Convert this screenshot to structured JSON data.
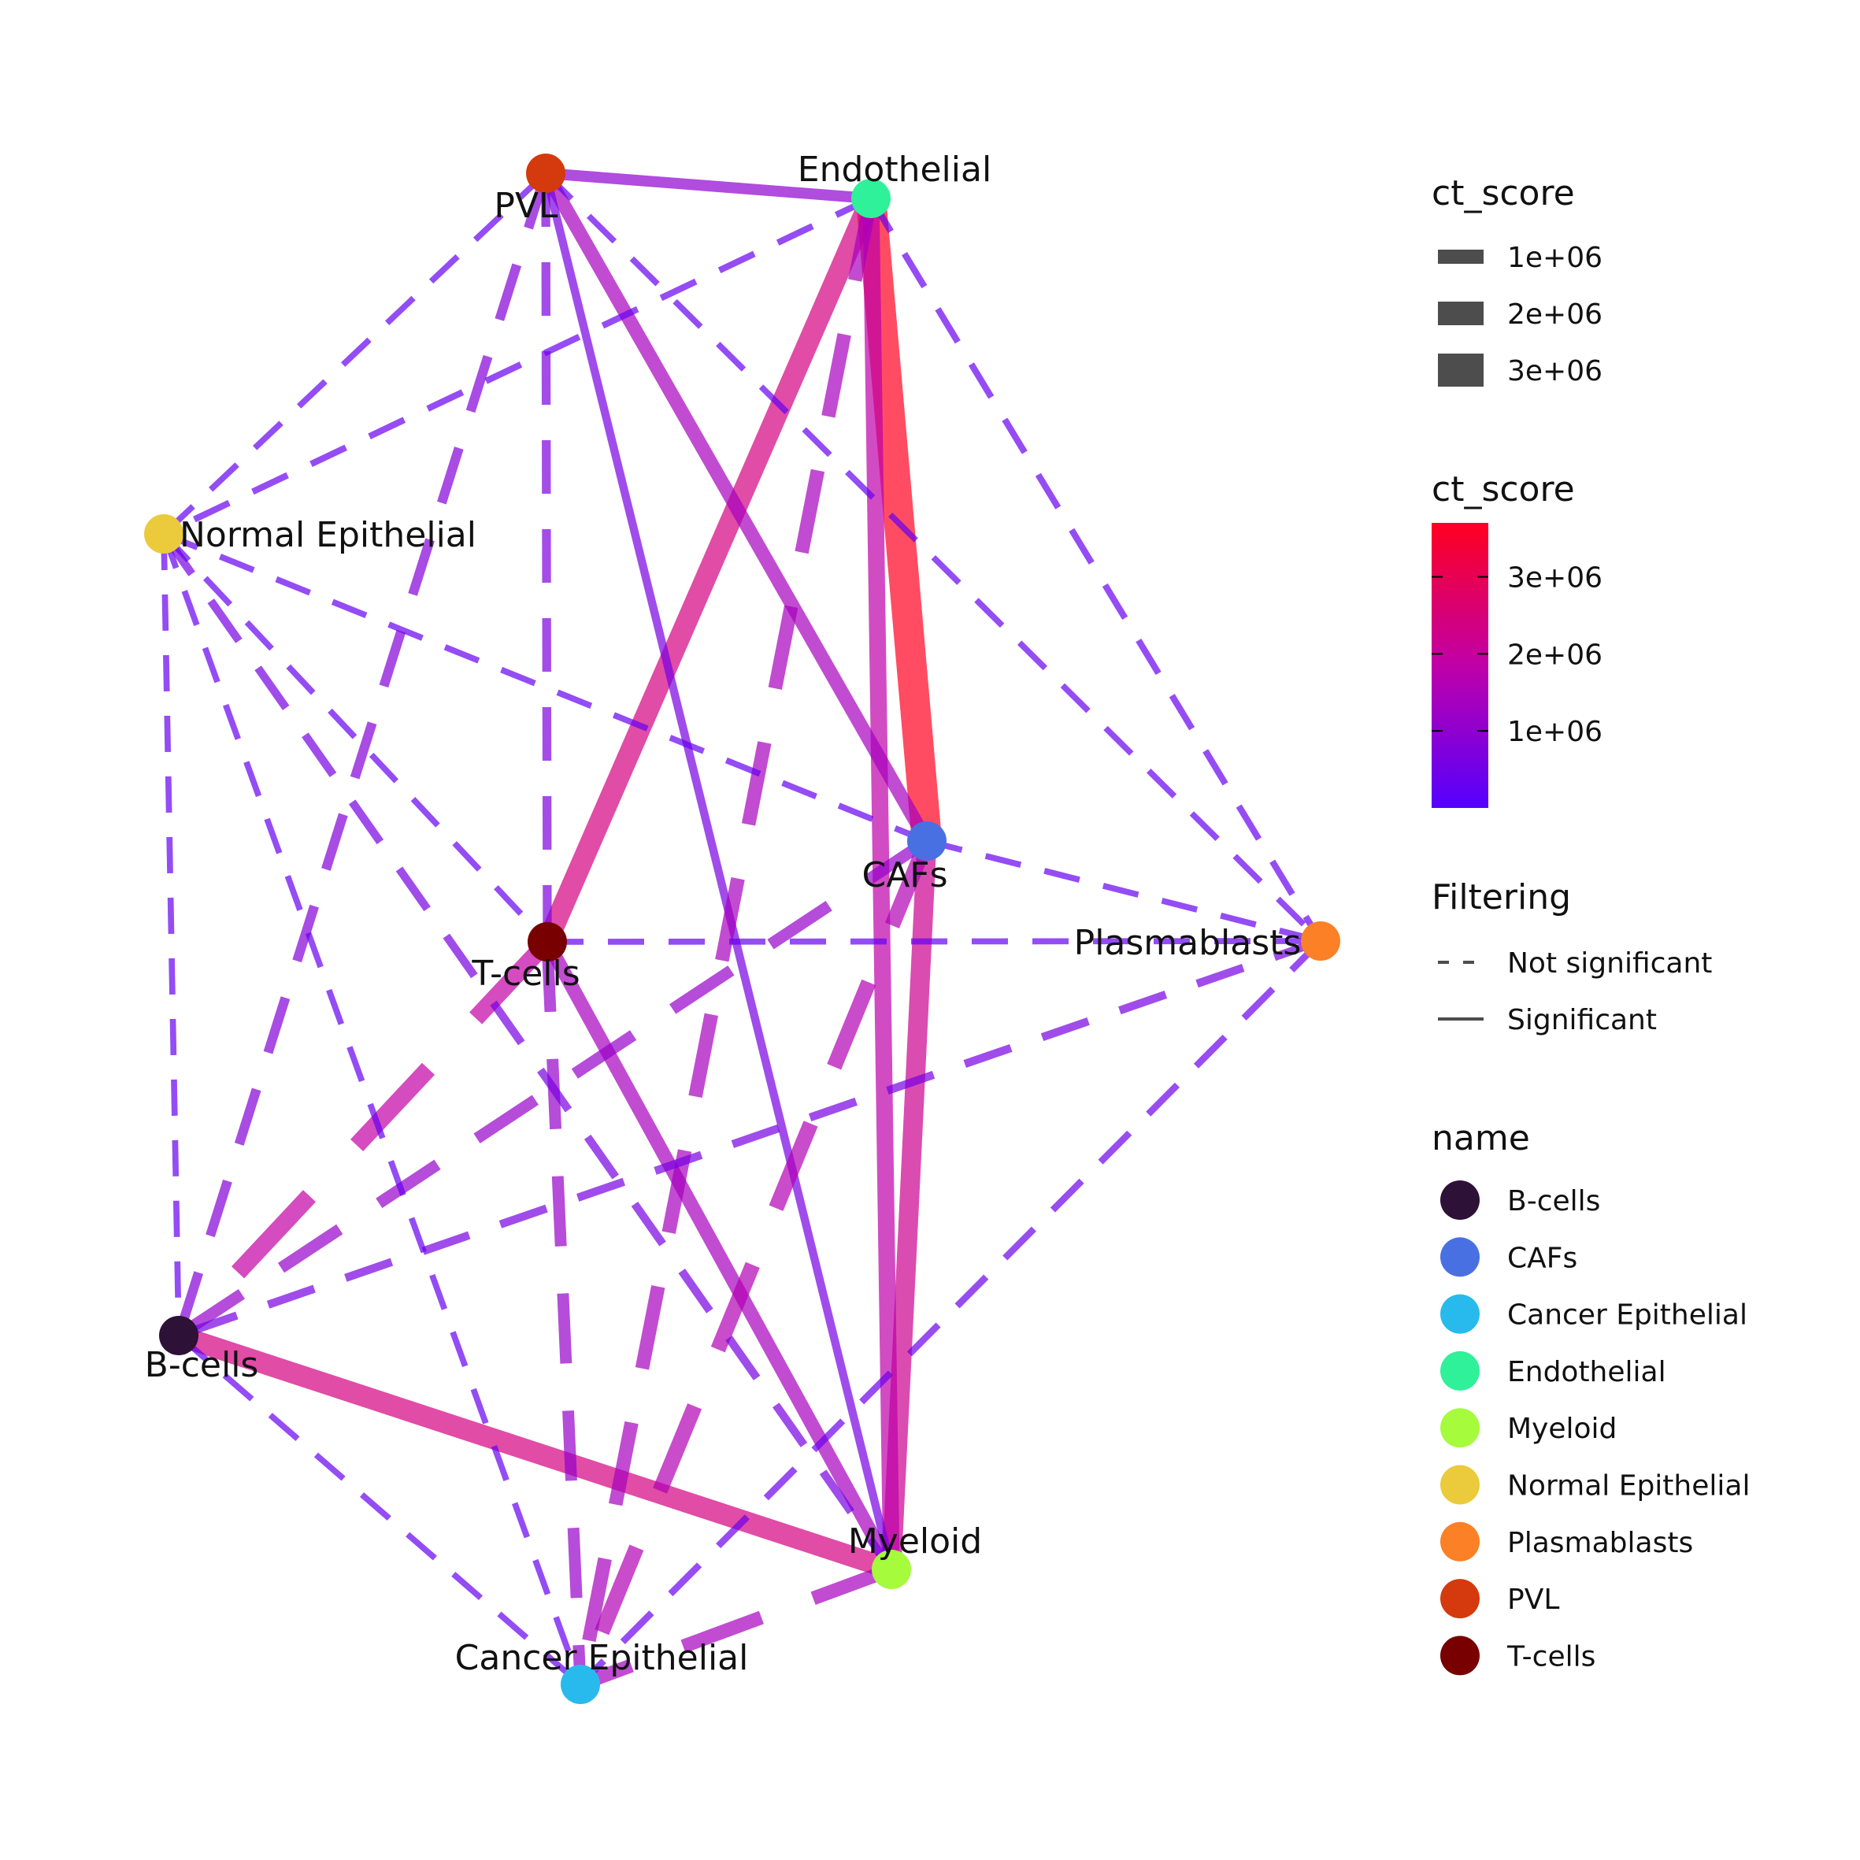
{
  "nodes": [
    {
      "name": "PVL",
      "color": "#D43A0E"
    },
    {
      "name": "Endothelial",
      "color": "#2EF19A"
    },
    {
      "name": "Normal Epithelial",
      "color": "#EBCB3B"
    },
    {
      "name": "CAFs",
      "color": "#4870E3"
    },
    {
      "name": "T-cells",
      "color": "#780000"
    },
    {
      "name": "Plasmablasts",
      "color": "#FB8026"
    },
    {
      "name": "B-cells",
      "color": "#2D1137"
    },
    {
      "name": "Myeloid",
      "color": "#A5FB3C"
    },
    {
      "name": "Cancer Epithelial",
      "color": "#28BAEC"
    }
  ],
  "edges": [
    {
      "from": "Endothelial",
      "to": "CAFs",
      "ct_score": 3700000,
      "significant": true
    },
    {
      "from": "B-cells",
      "to": "Myeloid",
      "ct_score": 2400000,
      "significant": true
    },
    {
      "from": "Endothelial",
      "to": "T-cells",
      "ct_score": 2400000,
      "significant": true
    },
    {
      "from": "CAFs",
      "to": "Myeloid",
      "ct_score": 2200000,
      "significant": true
    },
    {
      "from": "Endothelial",
      "to": "Myeloid",
      "ct_score": 1800000,
      "significant": true
    },
    {
      "from": "PVL",
      "to": "CAFs",
      "ct_score": 1400000,
      "significant": true
    },
    {
      "from": "T-cells",
      "to": "Myeloid",
      "ct_score": 1400000,
      "significant": true
    },
    {
      "from": "PVL",
      "to": "Endothelial",
      "ct_score": 1000000,
      "significant": true
    },
    {
      "from": "PVL",
      "to": "Myeloid",
      "ct_score": 600000,
      "significant": true
    },
    {
      "from": "T-cells",
      "to": "B-cells",
      "ct_score": 1900000,
      "significant": false
    },
    {
      "from": "CAFs",
      "to": "Cancer Epithelial",
      "ct_score": 1600000,
      "significant": false
    },
    {
      "from": "Endothelial",
      "to": "Cancer Epithelial",
      "ct_score": 1400000,
      "significant": false
    },
    {
      "from": "T-cells",
      "to": "Cancer Epithelial",
      "ct_score": 1100000,
      "significant": false
    },
    {
      "from": "Myeloid",
      "to": "Cancer Epithelial",
      "ct_score": 1400000,
      "significant": false
    },
    {
      "from": "CAFs",
      "to": "B-cells",
      "ct_score": 1100000,
      "significant": false
    },
    {
      "from": "PVL",
      "to": "B-cells",
      "ct_score": 800000,
      "significant": false
    },
    {
      "from": "PVL",
      "to": "T-cells",
      "ct_score": 700000,
      "significant": false
    },
    {
      "from": "Normal Epithelial",
      "to": "Myeloid",
      "ct_score": 600000,
      "significant": false
    },
    {
      "from": "Plasmablasts",
      "to": "Cancer Epithelial",
      "ct_score": 400000,
      "significant": false
    },
    {
      "from": "Plasmablasts",
      "to": "B-cells",
      "ct_score": 600000,
      "significant": false
    },
    {
      "from": "Endothelial",
      "to": "Normal Epithelial",
      "ct_score": 350000,
      "significant": false
    },
    {
      "from": "Endothelial",
      "to": "Plasmablasts",
      "ct_score": 350000,
      "significant": false
    },
    {
      "from": "PVL",
      "to": "Normal Epithelial",
      "ct_score": 300000,
      "significant": false
    },
    {
      "from": "PVL",
      "to": "Plasmablasts",
      "ct_score": 300000,
      "significant": false
    },
    {
      "from": "Normal Epithelial",
      "to": "CAFs",
      "ct_score": 300000,
      "significant": false
    },
    {
      "from": "Normal Epithelial",
      "to": "T-cells",
      "ct_score": 300000,
      "significant": false
    },
    {
      "from": "Normal Epithelial",
      "to": "B-cells",
      "ct_score": 300000,
      "significant": false
    },
    {
      "from": "Normal Epithelial",
      "to": "Cancer Epithelial",
      "ct_score": 300000,
      "significant": false
    },
    {
      "from": "CAFs",
      "to": "Plasmablasts",
      "ct_score": 300000,
      "significant": false
    },
    {
      "from": "T-cells",
      "to": "Plasmablasts",
      "ct_score": 300000,
      "significant": false
    },
    {
      "from": "B-cells",
      "to": "Cancer Epithelial",
      "ct_score": 300000,
      "significant": false
    }
  ],
  "legend": {
    "width_title": "ct_score",
    "width_items": [
      {
        "label": "1e+06",
        "value": 1000000
      },
      {
        "label": "2e+06",
        "value": 2000000
      },
      {
        "label": "3e+06",
        "value": 3000000
      }
    ],
    "color_title": "ct_score",
    "color_ticks": [
      {
        "label": "3e+06",
        "value": 3000000
      },
      {
        "label": "2e+06",
        "value": 2000000
      },
      {
        "label": "1e+06",
        "value": 1000000
      }
    ],
    "color_scale": {
      "min": 0,
      "max": 3700000,
      "low": "#5500FF",
      "mid": "#C000A8",
      "high": "#FF0020"
    },
    "filter_title": "Filtering",
    "filter_items": [
      {
        "label": "Not significant",
        "style": "dashed"
      },
      {
        "label": "Significant",
        "style": "solid"
      }
    ],
    "name_title": "name",
    "name_items": [
      {
        "label": "B-cells",
        "color": "#2D1137"
      },
      {
        "label": "CAFs",
        "color": "#4870E3"
      },
      {
        "label": "Cancer Epithelial",
        "color": "#28BAEC"
      },
      {
        "label": "Endothelial",
        "color": "#2EF19A"
      },
      {
        "label": "Myeloid",
        "color": "#A5FB3C"
      },
      {
        "label": "Normal Epithelial",
        "color": "#EBCB3B"
      },
      {
        "label": "Plasmablasts",
        "color": "#FB8026"
      },
      {
        "label": "PVL",
        "color": "#D43A0E"
      },
      {
        "label": "T-cells",
        "color": "#780000"
      }
    ]
  }
}
